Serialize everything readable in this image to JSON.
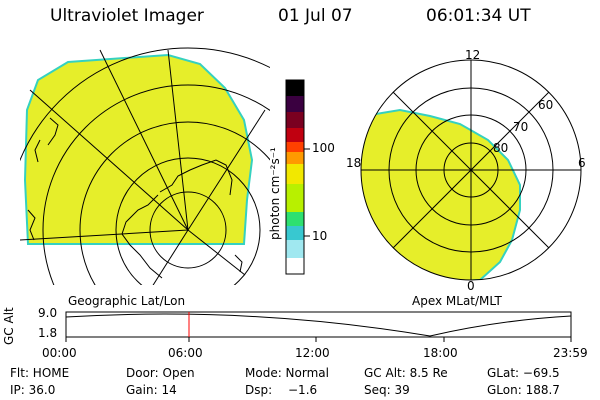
{
  "header": {
    "instrument": "Ultraviolet Imager",
    "date": "01 Jul 07",
    "time": "06:01:34 UT"
  },
  "colorbar": {
    "unit_label": "photon cm⁻²s⁻¹",
    "tick_100": "100",
    "tick_10": "10",
    "colors": [
      "#000000",
      "#3a0040",
      "#7a0020",
      "#c00010",
      "#ff4000",
      "#ff9a00",
      "#f2e800",
      "#b8f000",
      "#2ee070",
      "#38c8d0",
      "#a0e8f0",
      "#ffffff"
    ]
  },
  "left_panel": {
    "caption": "Geographic Lat/Lon",
    "fill_color": "#e6ee2a",
    "edge_color": "#35d1c0"
  },
  "right_panel": {
    "caption": "Apex MLat/MLT",
    "labels": {
      "mlt_12": "12",
      "mlt_18": "18",
      "mlt_6": "6",
      "mlt_0": "0",
      "lat_60": "60",
      "lat_70": "70",
      "lat_80": "80"
    }
  },
  "altitude_plot": {
    "ylabel": "GC Alt",
    "ymax_label": "9.0",
    "ymin_label": "1.8",
    "x_ticks": [
      "00:00",
      "06:00",
      "12:00",
      "18:00",
      "23:59"
    ],
    "marker_color": "#ff0000"
  },
  "info": {
    "flt": "Flt: HOME",
    "door": "Door: Open",
    "mode": "Mode: Normal",
    "gcalt": "GC Alt: 8.5 Re",
    "glat": "GLat: −69.5",
    "ip": "IP: 36.0",
    "gain": "Gain: 14",
    "dsp_label": "Dsp:",
    "dsp_value": "−1.6",
    "seq": "Seq: 39",
    "glon": "GLon: 188.7"
  }
}
